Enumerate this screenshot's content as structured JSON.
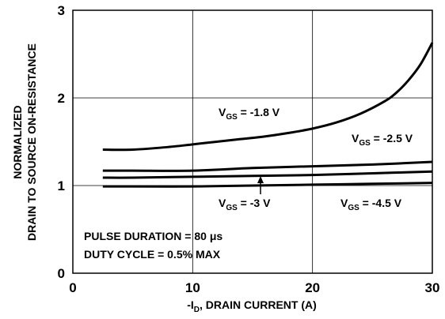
{
  "chart_data": {
    "type": "line",
    "xlabel": "-I",
    "xlabel_sub": "D",
    "xlabel_rest": ", DRAIN CURRENT (A)",
    "ylabel_line1": "NORMALIZED",
    "ylabel_line2": "DRAIN TO SOURCE ON-RESISTANCE",
    "xlim": [
      0,
      30
    ],
    "ylim": [
      0,
      3
    ],
    "xticks": [
      0,
      10,
      20,
      30
    ],
    "yticks": [
      0,
      1,
      2,
      3
    ],
    "grid": true,
    "series": [
      {
        "name": "V_GS = -1.8 V",
        "label_main": "V",
        "label_sub": "GS",
        "label_rest": " = -1.8 V",
        "x": [
          2.5,
          5,
          8,
          10,
          12,
          14,
          16,
          18,
          20,
          22,
          24,
          26,
          27,
          28,
          29,
          30
        ],
        "y": [
          1.41,
          1.41,
          1.44,
          1.47,
          1.5,
          1.53,
          1.56,
          1.6,
          1.65,
          1.72,
          1.82,
          1.96,
          2.06,
          2.2,
          2.38,
          2.63
        ]
      },
      {
        "name": "V_GS = -2.5 V",
        "label_main": "V",
        "label_sub": "GS",
        "label_rest": " = -2.5 V",
        "x": [
          2.5,
          5,
          10,
          15,
          20,
          25,
          30
        ],
        "y": [
          1.17,
          1.17,
          1.17,
          1.2,
          1.22,
          1.24,
          1.27
        ]
      },
      {
        "name": "V_GS = -3 V",
        "label_main": "V",
        "label_sub": "GS",
        "label_rest": " = -3 V",
        "x": [
          2.5,
          5,
          10,
          15,
          20,
          25,
          30
        ],
        "y": [
          1.09,
          1.09,
          1.1,
          1.11,
          1.12,
          1.14,
          1.16
        ]
      },
      {
        "name": "V_GS = -4.5 V",
        "label_main": "V",
        "label_sub": "GS",
        "label_rest": " = -4.5 V",
        "x": [
          2.5,
          5,
          10,
          15,
          20,
          25,
          30
        ],
        "y": [
          0.99,
          0.99,
          0.99,
          1.0,
          1.01,
          1.02,
          1.03
        ]
      }
    ],
    "notes": [
      "PULSE DURATION = 80 μs",
      "DUTY CYCLE = 0.5% MAX"
    ]
  }
}
